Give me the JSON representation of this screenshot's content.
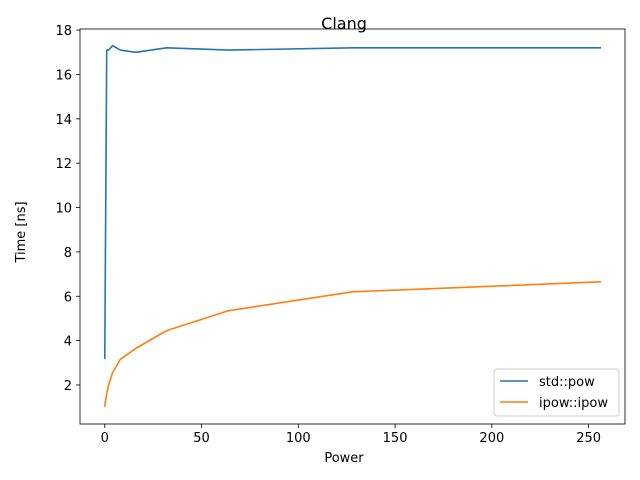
{
  "chart_data": {
    "type": "line",
    "title": "Clang",
    "xlabel": "Power",
    "ylabel": "Time [ns]",
    "xlim": [
      -12.8,
      268.8
    ],
    "ylim": [
      0.24,
      18.05
    ],
    "x_ticks": [
      0,
      50,
      100,
      150,
      200,
      250
    ],
    "y_ticks": [
      2,
      4,
      6,
      8,
      10,
      12,
      14,
      16,
      18
    ],
    "x_tick_labels": [
      "0",
      "50",
      "100",
      "150",
      "200",
      "250"
    ],
    "y_tick_labels": [
      "2",
      "4",
      "6",
      "8",
      "10",
      "12",
      "14",
      "16",
      "18"
    ],
    "grid": false,
    "legend_position": "lower right",
    "series": [
      {
        "name": "std::pow",
        "color": "#1f77b4",
        "x": [
          0,
          1,
          2,
          4,
          8,
          16,
          32,
          64,
          128,
          256
        ],
        "y": [
          3.2,
          17.1,
          17.1,
          17.3,
          17.1,
          17.0,
          17.2,
          17.1,
          17.2,
          17.2
        ]
      },
      {
        "name": "ipow::ipow",
        "color": "#ff7f0e",
        "x": [
          0,
          1,
          2,
          4,
          8,
          16,
          32,
          64,
          128,
          256
        ],
        "y": [
          1.05,
          1.6,
          2.0,
          2.55,
          3.15,
          3.65,
          4.45,
          5.35,
          6.2,
          6.65
        ]
      }
    ]
  }
}
